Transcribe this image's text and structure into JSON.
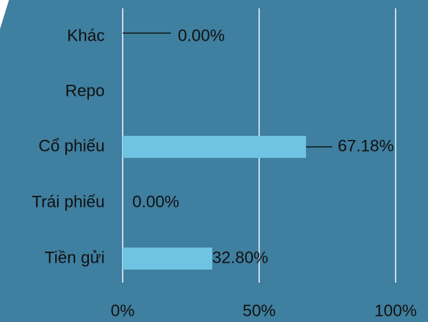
{
  "chart_data": {
    "type": "bar",
    "orientation": "horizontal",
    "categories": [
      "Khác",
      "Repo",
      "Cổ phiếu",
      "Trái phiếu",
      "Tiền gửi"
    ],
    "values": [
      0,
      null,
      67.18,
      0,
      32.8
    ],
    "value_labels": [
      "0.00%",
      null,
      "67.18%",
      "0.00%",
      "32.80%"
    ],
    "color": "#6fc3e3",
    "xlim": [
      0,
      100
    ],
    "xticks": [
      {
        "value": 0,
        "label": "0%"
      },
      {
        "value": 50,
        "label": "50%"
      },
      {
        "value": 100,
        "label": "100%"
      }
    ],
    "grid": true
  }
}
